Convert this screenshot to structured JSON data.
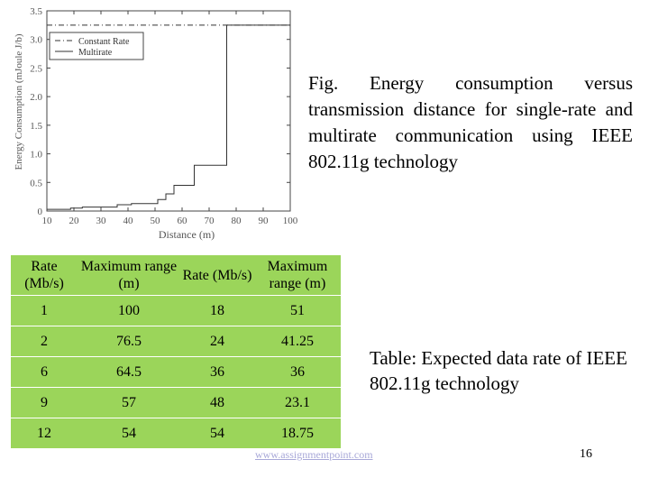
{
  "chart_data": {
    "type": "line",
    "xlabel": "Distance (m)",
    "ylabel": "Energy Consumption (mJoule J/b)",
    "xlim": [
      10,
      100
    ],
    "ylim": [
      0,
      3.5
    ],
    "x_ticks": [
      "10",
      "20",
      "30",
      "40",
      "50",
      "60",
      "70",
      "80",
      "90",
      "100"
    ],
    "y_ticks": [
      "0",
      "0.5",
      "1.0",
      "1.5",
      "2.0",
      "2.5",
      "3.0",
      "3.5"
    ],
    "grid": false,
    "legend_position": "top-left",
    "series": [
      {
        "name": "Constant Rate",
        "style": "dash-dot",
        "points": [
          [
            10,
            3.25
          ],
          [
            100,
            3.25
          ]
        ]
      },
      {
        "name": "Multirate",
        "style": "solid",
        "points": [
          [
            10,
            0.03
          ],
          [
            18.75,
            0.03
          ],
          [
            18.75,
            0.05
          ],
          [
            23.1,
            0.05
          ],
          [
            23.1,
            0.07
          ],
          [
            36,
            0.07
          ],
          [
            36,
            0.11
          ],
          [
            41.25,
            0.11
          ],
          [
            41.25,
            0.13
          ],
          [
            51,
            0.13
          ],
          [
            51,
            0.2
          ],
          [
            54,
            0.2
          ],
          [
            54,
            0.3
          ],
          [
            57,
            0.3
          ],
          [
            57,
            0.45
          ],
          [
            64.5,
            0.45
          ],
          [
            64.5,
            0.8
          ],
          [
            76.5,
            0.8
          ],
          [
            76.5,
            3.25
          ],
          [
            100,
            3.25
          ]
        ]
      }
    ]
  },
  "figure_caption": "Fig. Energy consumption versus transmission distance for single-rate and multirate communication using IEEE 802.11g technology",
  "table": {
    "headers": [
      "Rate (Mb/s)",
      "Maximum range (m)",
      "Rate (Mb/s)",
      "Maximum range (m)"
    ],
    "rows": [
      [
        "1",
        "100",
        "18",
        "51"
      ],
      [
        "2",
        "76.5",
        "24",
        "41.25"
      ],
      [
        "6",
        "64.5",
        "36",
        "36"
      ],
      [
        "9",
        "57",
        "48",
        "23.1"
      ],
      [
        "12",
        "54",
        "54",
        "18.75"
      ]
    ]
  },
  "table_caption": "Table: Expected data rate of IEEE 802.11g technology",
  "footer": {
    "link": "www.assignmentpoint.com",
    "page": "16"
  }
}
